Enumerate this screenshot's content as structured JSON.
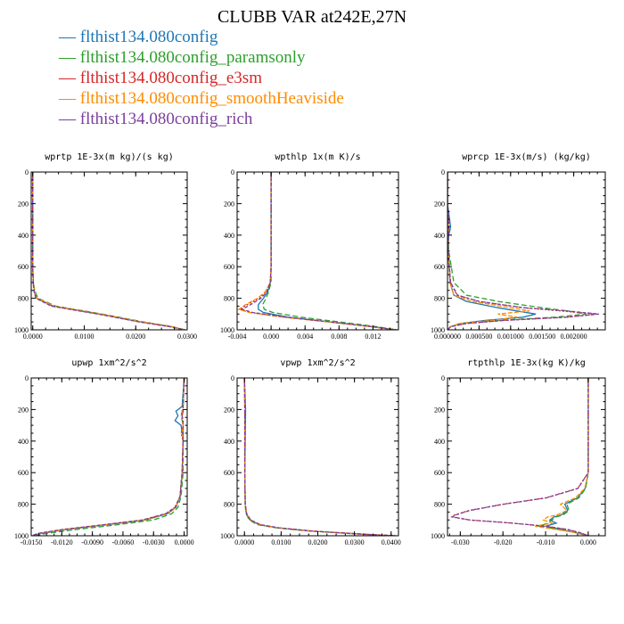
{
  "figure": {
    "title": "CLUBB VAR at242E,27N"
  },
  "legend": [
    {
      "label": "flthist134.080config",
      "color": "#1f77b4"
    },
    {
      "label": "flthist134.080config_paramsonly",
      "color": "#2ca02c"
    },
    {
      "label": "flthist134.080config_e3sm",
      "color": "#d62728"
    },
    {
      "label": "flthist134.080config_smoothHeaviside",
      "color": "#ff8c00"
    },
    {
      "label": "flthist134.080config_rich",
      "color": "#7b3f9e"
    }
  ],
  "legend_marker": "—",
  "chart_data": [
    {
      "type": "line",
      "title": "wprtp  1E-3x(m kg)/(s kg)",
      "xlim": [
        -0.0003,
        0.03
      ],
      "ylim": [
        0,
        1000
      ],
      "y_inverted": true,
      "xticks": [
        "0.0000",
        "0.0100",
        "0.0200",
        "0.0300"
      ],
      "xtick_values": [
        0,
        0.01,
        0.02,
        0.03
      ],
      "yticks": [
        0,
        200,
        400,
        600,
        800,
        1000
      ],
      "y": [
        0,
        200,
        400,
        600,
        700,
        750,
        800,
        850,
        900,
        950,
        980,
        1000
      ],
      "series": [
        {
          "values": [
            0,
            0,
            0,
            0,
            0.0001,
            0.0003,
            0.0008,
            0.004,
            0.013,
            0.021,
            0.027,
            0.0295
          ]
        },
        {
          "values": [
            0,
            0,
            0,
            0,
            0.0001,
            0.0004,
            0.001,
            0.0045,
            0.0135,
            0.0215,
            0.0272,
            0.0296
          ]
        },
        {
          "values": [
            0,
            0,
            0,
            0,
            0.0001,
            0.0002,
            0.0007,
            0.0038,
            0.0128,
            0.0208,
            0.0268,
            0.0294
          ]
        },
        {
          "values": [
            0,
            0,
            0,
            0,
            0.0001,
            0.0003,
            0.0008,
            0.0042,
            0.0132,
            0.0212,
            0.0271,
            0.0295
          ]
        },
        {
          "values": [
            0,
            0,
            0,
            0,
            0.0001,
            0.0002,
            0.0006,
            0.0036,
            0.0126,
            0.0206,
            0.0266,
            0.0293
          ]
        }
      ]
    },
    {
      "type": "line",
      "title": "wpthlp  1x(m K)/s",
      "xlim": [
        -0.004,
        0.015
      ],
      "ylim": [
        0,
        1000
      ],
      "y_inverted": true,
      "xticks": [
        "-0.004",
        "0.000",
        "0.004",
        "0.008",
        "0.012"
      ],
      "xtick_values": [
        -0.004,
        0,
        0.004,
        0.008,
        0.012
      ],
      "yticks": [
        0,
        200,
        400,
        600,
        800,
        1000
      ],
      "y": [
        0,
        200,
        400,
        600,
        700,
        760,
        800,
        840,
        870,
        890,
        920,
        950,
        980,
        1000
      ],
      "series": [
        {
          "values": [
            0,
            0,
            0,
            0,
            -0.0001,
            -0.0004,
            -0.0009,
            -0.0015,
            -0.0015,
            -0.0009,
            0.002,
            0.007,
            0.012,
            0.0148
          ]
        },
        {
          "values": [
            0,
            0,
            0,
            0,
            0,
            -0.0003,
            -0.0006,
            -0.001,
            -0.0008,
            0.0002,
            0.0035,
            0.008,
            0.0125,
            0.0148
          ]
        },
        {
          "values": [
            0,
            0,
            0,
            0,
            -0.0001,
            -0.0006,
            -0.0014,
            -0.0028,
            -0.0037,
            -0.0025,
            0.0015,
            0.0068,
            0.0118,
            0.0147
          ]
        },
        {
          "values": [
            0,
            0,
            0,
            0,
            -0.0001,
            -0.0007,
            -0.0016,
            -0.003,
            -0.0038,
            -0.0026,
            0.0014,
            0.0067,
            0.0117,
            0.0147
          ]
        },
        {
          "values": [
            0,
            0,
            0,
            0,
            -0.0001,
            -0.0005,
            -0.0012,
            -0.0024,
            -0.0034,
            -0.0022,
            0.0018,
            0.0069,
            0.0119,
            0.0147
          ]
        }
      ]
    },
    {
      "type": "line",
      "title": "wprcp  1E-3x(m/s) (kg/kg)",
      "xlim": [
        0,
        0.0025
      ],
      "ylim": [
        0,
        1000
      ],
      "y_inverted": true,
      "xticks": [
        "0.000000",
        "0.000500",
        "0.001000",
        "0.001500",
        "0.002000"
      ],
      "xtick_values": [
        0,
        0.0005,
        0.001,
        0.0015,
        0.002
      ],
      "yticks": [
        0,
        200,
        400,
        600,
        800,
        1000
      ],
      "y": [
        0,
        200,
        350,
        400,
        500,
        700,
        780,
        820,
        860,
        880,
        900,
        920,
        940,
        960,
        980,
        1000
      ],
      "series": [
        {
          "values": [
            0,
            0,
            5e-05,
            2e-05,
            1e-05,
            4e-05,
            0.0001,
            0.0003,
            0.0008,
            0.0011,
            0.0014,
            0.0012,
            0.0006,
            0.0002,
            5e-05,
            0
          ]
        },
        {
          "values": [
            0,
            0,
            1e-05,
            1e-05,
            2e-05,
            0.0001,
            0.0003,
            0.0008,
            0.0015,
            0.0019,
            0.0022,
            0.0017,
            0.0008,
            0.0002,
            5e-05,
            0
          ]
        },
        {
          "values": [
            0,
            0,
            3e-05,
            1e-05,
            1e-05,
            5e-05,
            0.00015,
            0.0005,
            0.0012,
            0.0018,
            0.00235,
            0.0019,
            0.0009,
            0.0003,
            5e-05,
            0
          ]
        },
        {
          "values": [
            0,
            0,
            1e-05,
            1e-05,
            1e-05,
            4e-05,
            0.0001,
            0.0004,
            0.001,
            0.0013,
            0.0008,
            0.0011,
            0.0007,
            0.0002,
            5e-05,
            0
          ]
        },
        {
          "values": [
            0,
            0,
            2e-05,
            1e-05,
            1e-05,
            5e-05,
            0.00016,
            0.0005,
            0.0012,
            0.0019,
            0.0024,
            0.0019,
            0.0009,
            0.0003,
            5e-05,
            0
          ]
        }
      ]
    },
    {
      "type": "line",
      "title": "upwp  1xm^2/s^2",
      "xlim": [
        -0.015,
        0.0003
      ],
      "ylim": [
        0,
        1000
      ],
      "y_inverted": true,
      "xticks": [
        "-0.0150",
        "-0.0120",
        "-0.0090",
        "-0.0060",
        "-0.0030",
        "0.0000"
      ],
      "xtick_values": [
        -0.015,
        -0.012,
        -0.009,
        -0.006,
        -0.003,
        0
      ],
      "yticks": [
        0,
        200,
        400,
        600,
        800,
        1000
      ],
      "y": [
        0,
        180,
        210,
        240,
        270,
        300,
        350,
        400,
        600,
        750,
        820,
        860,
        900,
        930,
        960,
        985,
        1000
      ],
      "series": [
        {
          "values": [
            0,
            -0.0002,
            -0.0008,
            -0.0006,
            -0.0009,
            -0.0003,
            -0.0002,
            -0.0001,
            -0.0002,
            -0.0004,
            -0.0008,
            -0.0016,
            -0.0038,
            -0.0075,
            -0.0115,
            -0.014,
            -0.0148
          ]
        },
        {
          "values": [
            0,
            -0.0001,
            -0.0002,
            -0.0003,
            -0.0002,
            -0.0001,
            -0.0001,
            -0.0001,
            -0.0001,
            -0.0003,
            -0.0006,
            -0.0012,
            -0.003,
            -0.0065,
            -0.0105,
            -0.0135,
            -0.0145
          ]
        },
        {
          "values": [
            0,
            -0.0001,
            -0.0001,
            -0.0002,
            -0.0001,
            -0.0001,
            -0.0003,
            -0.0001,
            -0.0002,
            -0.0004,
            -0.0009,
            -0.0018,
            -0.004,
            -0.0078,
            -0.0118,
            -0.0142,
            -0.0149
          ]
        },
        {
          "values": [
            0,
            -0.0001,
            -0.0002,
            -0.0002,
            -0.0002,
            -0.0001,
            -0.0002,
            -0.0001,
            -0.0002,
            -0.0004,
            -0.0008,
            -0.0017,
            -0.0039,
            -0.0077,
            -0.0117,
            -0.0141,
            -0.0149
          ]
        },
        {
          "values": [
            0,
            -0.0001,
            -0.0001,
            -0.0002,
            -0.0001,
            -0.0001,
            -0.0001,
            -0.0001,
            -0.0002,
            -0.0004,
            -0.0009,
            -0.0018,
            -0.0041,
            -0.0079,
            -0.0119,
            -0.0143,
            -0.015
          ]
        }
      ]
    },
    {
      "type": "line",
      "title": "vpwp  1xm^2/s^2",
      "xlim": [
        -0.002,
        0.042
      ],
      "ylim": [
        0,
        1000
      ],
      "y_inverted": true,
      "xticks": [
        "0.0000",
        "0.0100",
        "0.0200",
        "0.0300",
        "0.0400"
      ],
      "xtick_values": [
        0,
        0.01,
        0.02,
        0.03,
        0.04
      ],
      "yticks": [
        0,
        200,
        400,
        600,
        800,
        1000
      ],
      "y": [
        0,
        200,
        400,
        600,
        800,
        860,
        900,
        930,
        950,
        970,
        990,
        1000
      ],
      "series": [
        {
          "values": [
            0,
            0.0003,
            0.0002,
            0.0001,
            0.0002,
            0.0005,
            0.0015,
            0.004,
            0.009,
            0.018,
            0.032,
            0.041
          ]
        },
        {
          "values": [
            0,
            0.0001,
            0.0001,
            0.0001,
            0.0002,
            0.0004,
            0.0013,
            0.0035,
            0.0085,
            0.0175,
            0.0315,
            0.0405
          ]
        },
        {
          "values": [
            0,
            0.0002,
            0.0001,
            0.0001,
            0.0002,
            0.0006,
            0.0017,
            0.0043,
            0.0093,
            0.0183,
            0.0322,
            0.0412
          ]
        },
        {
          "values": [
            0,
            0.0001,
            0.0001,
            0.0001,
            0.0002,
            0.0006,
            0.0016,
            0.0042,
            0.0092,
            0.0182,
            0.0321,
            0.0411
          ]
        },
        {
          "values": [
            0,
            0.0001,
            0.0001,
            0.0001,
            0.0002,
            0.0006,
            0.0017,
            0.0044,
            0.0094,
            0.0184,
            0.0323,
            0.0413
          ]
        }
      ]
    },
    {
      "type": "line",
      "title": "rtpthlp  1E-3x(kg K)/kg",
      "xlim": [
        -0.033,
        0.004
      ],
      "ylim": [
        0,
        1000
      ],
      "y_inverted": true,
      "xticks": [
        "-0.030",
        "-0.020",
        "-0.010",
        "0.000"
      ],
      "xtick_values": [
        -0.03,
        -0.02,
        -0.01,
        0
      ],
      "yticks": [
        0,
        200,
        400,
        600,
        800,
        1000
      ],
      "y": [
        0,
        200,
        400,
        600,
        700,
        760,
        800,
        840,
        870,
        880,
        900,
        920,
        940,
        960,
        980,
        1000
      ],
      "series": [
        {
          "values": [
            0,
            0,
            0,
            0,
            -0.0007,
            -0.0025,
            -0.0055,
            -0.0048,
            -0.0065,
            -0.008,
            -0.009,
            -0.0075,
            -0.01,
            -0.0065,
            -0.003,
            0
          ]
        },
        {
          "values": [
            0,
            0,
            0,
            0,
            -0.0006,
            -0.0022,
            -0.005,
            -0.0045,
            -0.006,
            -0.0075,
            -0.0085,
            -0.0095,
            -0.0115,
            -0.007,
            -0.003,
            0
          ]
        },
        {
          "values": [
            0,
            0,
            0,
            0,
            -0.0025,
            -0.01,
            -0.02,
            -0.028,
            -0.0315,
            -0.032,
            -0.028,
            -0.018,
            -0.01,
            -0.005,
            -0.002,
            0
          ]
        },
        {
          "values": [
            0,
            0,
            0,
            0,
            -0.0008,
            -0.003,
            -0.0065,
            -0.005,
            -0.0075,
            -0.0095,
            -0.0105,
            -0.0085,
            -0.0125,
            -0.0075,
            -0.003,
            0
          ]
        },
        {
          "values": [
            0,
            0,
            0,
            0,
            -0.0024,
            -0.0098,
            -0.0198,
            -0.0278,
            -0.0313,
            -0.0318,
            -0.0278,
            -0.0178,
            -0.0098,
            -0.0048,
            -0.0019,
            0
          ]
        }
      ]
    }
  ]
}
